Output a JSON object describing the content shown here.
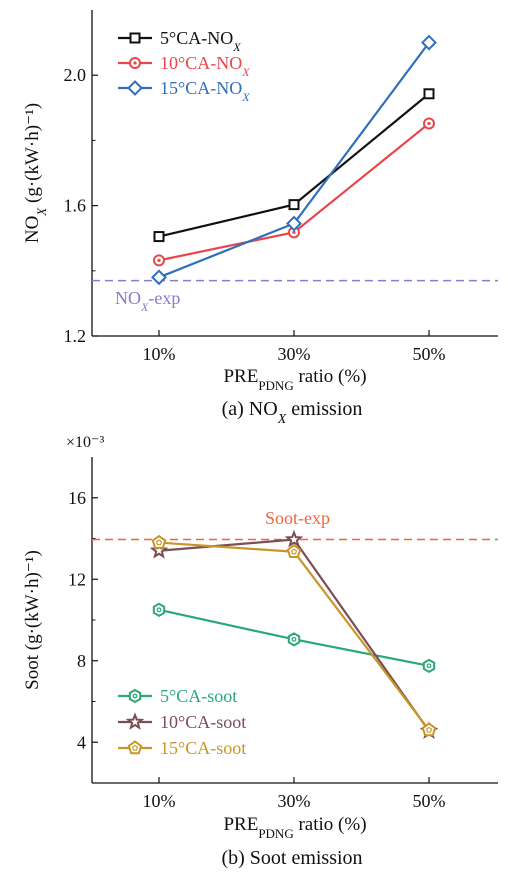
{
  "chart_data": [
    {
      "type": "line",
      "caption": "(a) NO_X emission",
      "categories": [
        "10%",
        "30%",
        "50%"
      ],
      "xlabel": "PRE_PDNG ratio (%)",
      "ylabel": "NO_X (g·(kW·h)⁻¹)",
      "ylim": [
        1.2,
        2.2
      ],
      "yticks": [
        1.2,
        1.6,
        2.0
      ],
      "y_multiplier": "",
      "grid": false,
      "legend_position": "top-left",
      "series": [
        {
          "name": "5°CA-NO_X",
          "values": [
            1.505,
            1.603,
            1.943
          ],
          "color": "#111111",
          "marker": "square"
        },
        {
          "name": "10°CA-NO_X",
          "values": [
            1.432,
            1.518,
            1.852
          ],
          "color": "#e8464a",
          "marker": "circle"
        },
        {
          "name": "15°CA-NO_X",
          "values": [
            1.38,
            1.545,
            2.1
          ],
          "color": "#2f6fbd",
          "marker": "diamond"
        }
      ],
      "reference_line": {
        "label": "NO_X-exp",
        "value": 1.37,
        "color": "#8d79cf",
        "label_color": "#8d79cf"
      }
    },
    {
      "type": "line",
      "caption": "(b) Soot emission",
      "categories": [
        "10%",
        "30%",
        "50%"
      ],
      "xlabel": "PRE_PDNG ratio (%)",
      "ylabel": "Soot (g·(kW·h)⁻¹)",
      "ylim": [
        2,
        18
      ],
      "yticks": [
        4,
        8,
        12,
        16
      ],
      "y_multiplier": "×10⁻³",
      "grid": false,
      "legend_position": "bottom-left",
      "series": [
        {
          "name": "5°CA-soot",
          "values": [
            10.5,
            9.05,
            7.75
          ],
          "color": "#2aa876",
          "marker": "hexagon"
        },
        {
          "name": "10°CA-soot",
          "values": [
            13.4,
            13.95,
            4.55
          ],
          "color": "#7a4e56",
          "marker": "star"
        },
        {
          "name": "15°CA-soot",
          "values": [
            13.8,
            13.35,
            4.6
          ],
          "color": "#c99528",
          "marker": "pentagon"
        }
      ],
      "reference_line": {
        "label": "Soot-exp",
        "value": 13.95,
        "color": "#f0663c",
        "label_color": "#f0663c"
      }
    }
  ]
}
